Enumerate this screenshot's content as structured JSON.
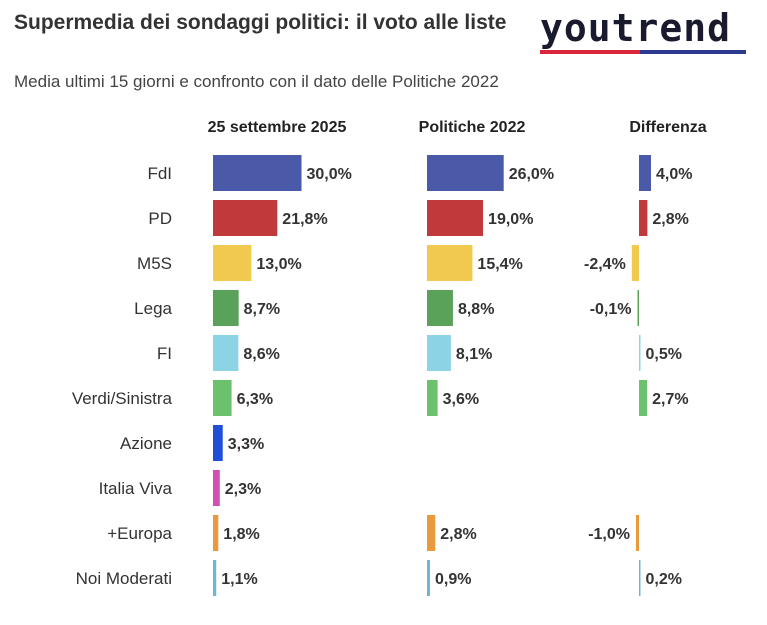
{
  "header": {
    "title": "Supermedia dei sondaggi politici: il voto alle liste",
    "subtitle": "Media ultimi 15 giorni e confronto con il dato delle Politiche 2022",
    "logo_text": "youtrend"
  },
  "chart_data": {
    "type": "bar",
    "columns": [
      "25 settembre 2025",
      "Politiche 2022",
      "Differenza"
    ],
    "categories": [
      "FdI",
      "PD",
      "M5S",
      "Lega",
      "FI",
      "Verdi/Sinistra",
      "Azione",
      "Italia Viva",
      "+Europa",
      "Noi Moderati"
    ],
    "series": [
      {
        "name": "25 settembre 2025",
        "values": [
          30.0,
          21.8,
          13.0,
          8.7,
          8.6,
          6.3,
          3.3,
          2.3,
          1.8,
          1.1
        ],
        "labels": [
          "30,0%",
          "21,8%",
          "13,0%",
          "8,7%",
          "8,6%",
          "6,3%",
          "3,3%",
          "2,3%",
          "1,8%",
          "1,1%"
        ]
      },
      {
        "name": "Politiche 2022",
        "values": [
          26.0,
          19.0,
          15.4,
          8.8,
          8.1,
          3.6,
          null,
          null,
          2.8,
          0.9
        ],
        "labels": [
          "26,0%",
          "19,0%",
          "15,4%",
          "8,8%",
          "8,1%",
          "3,6%",
          "",
          "",
          "2,8%",
          "0,9%"
        ]
      },
      {
        "name": "Differenza",
        "values": [
          4.0,
          2.8,
          -2.4,
          -0.1,
          0.5,
          2.7,
          null,
          null,
          -1.0,
          0.2
        ],
        "labels": [
          "4,0%",
          "2,8%",
          "-2,4%",
          "-0,1%",
          "0,5%",
          "2,7%",
          "",
          "",
          "-1,0%",
          "0,2%"
        ]
      }
    ],
    "colors": [
      "#4a5aa8",
      "#c0393b",
      "#f0c94e",
      "#5aa25a",
      "#8dd3e6",
      "#6cc26c",
      "#1f4fd6",
      "#d44fb0",
      "#e89a3c",
      "#6fb7d1"
    ],
    "legend": "none",
    "grid": false
  }
}
